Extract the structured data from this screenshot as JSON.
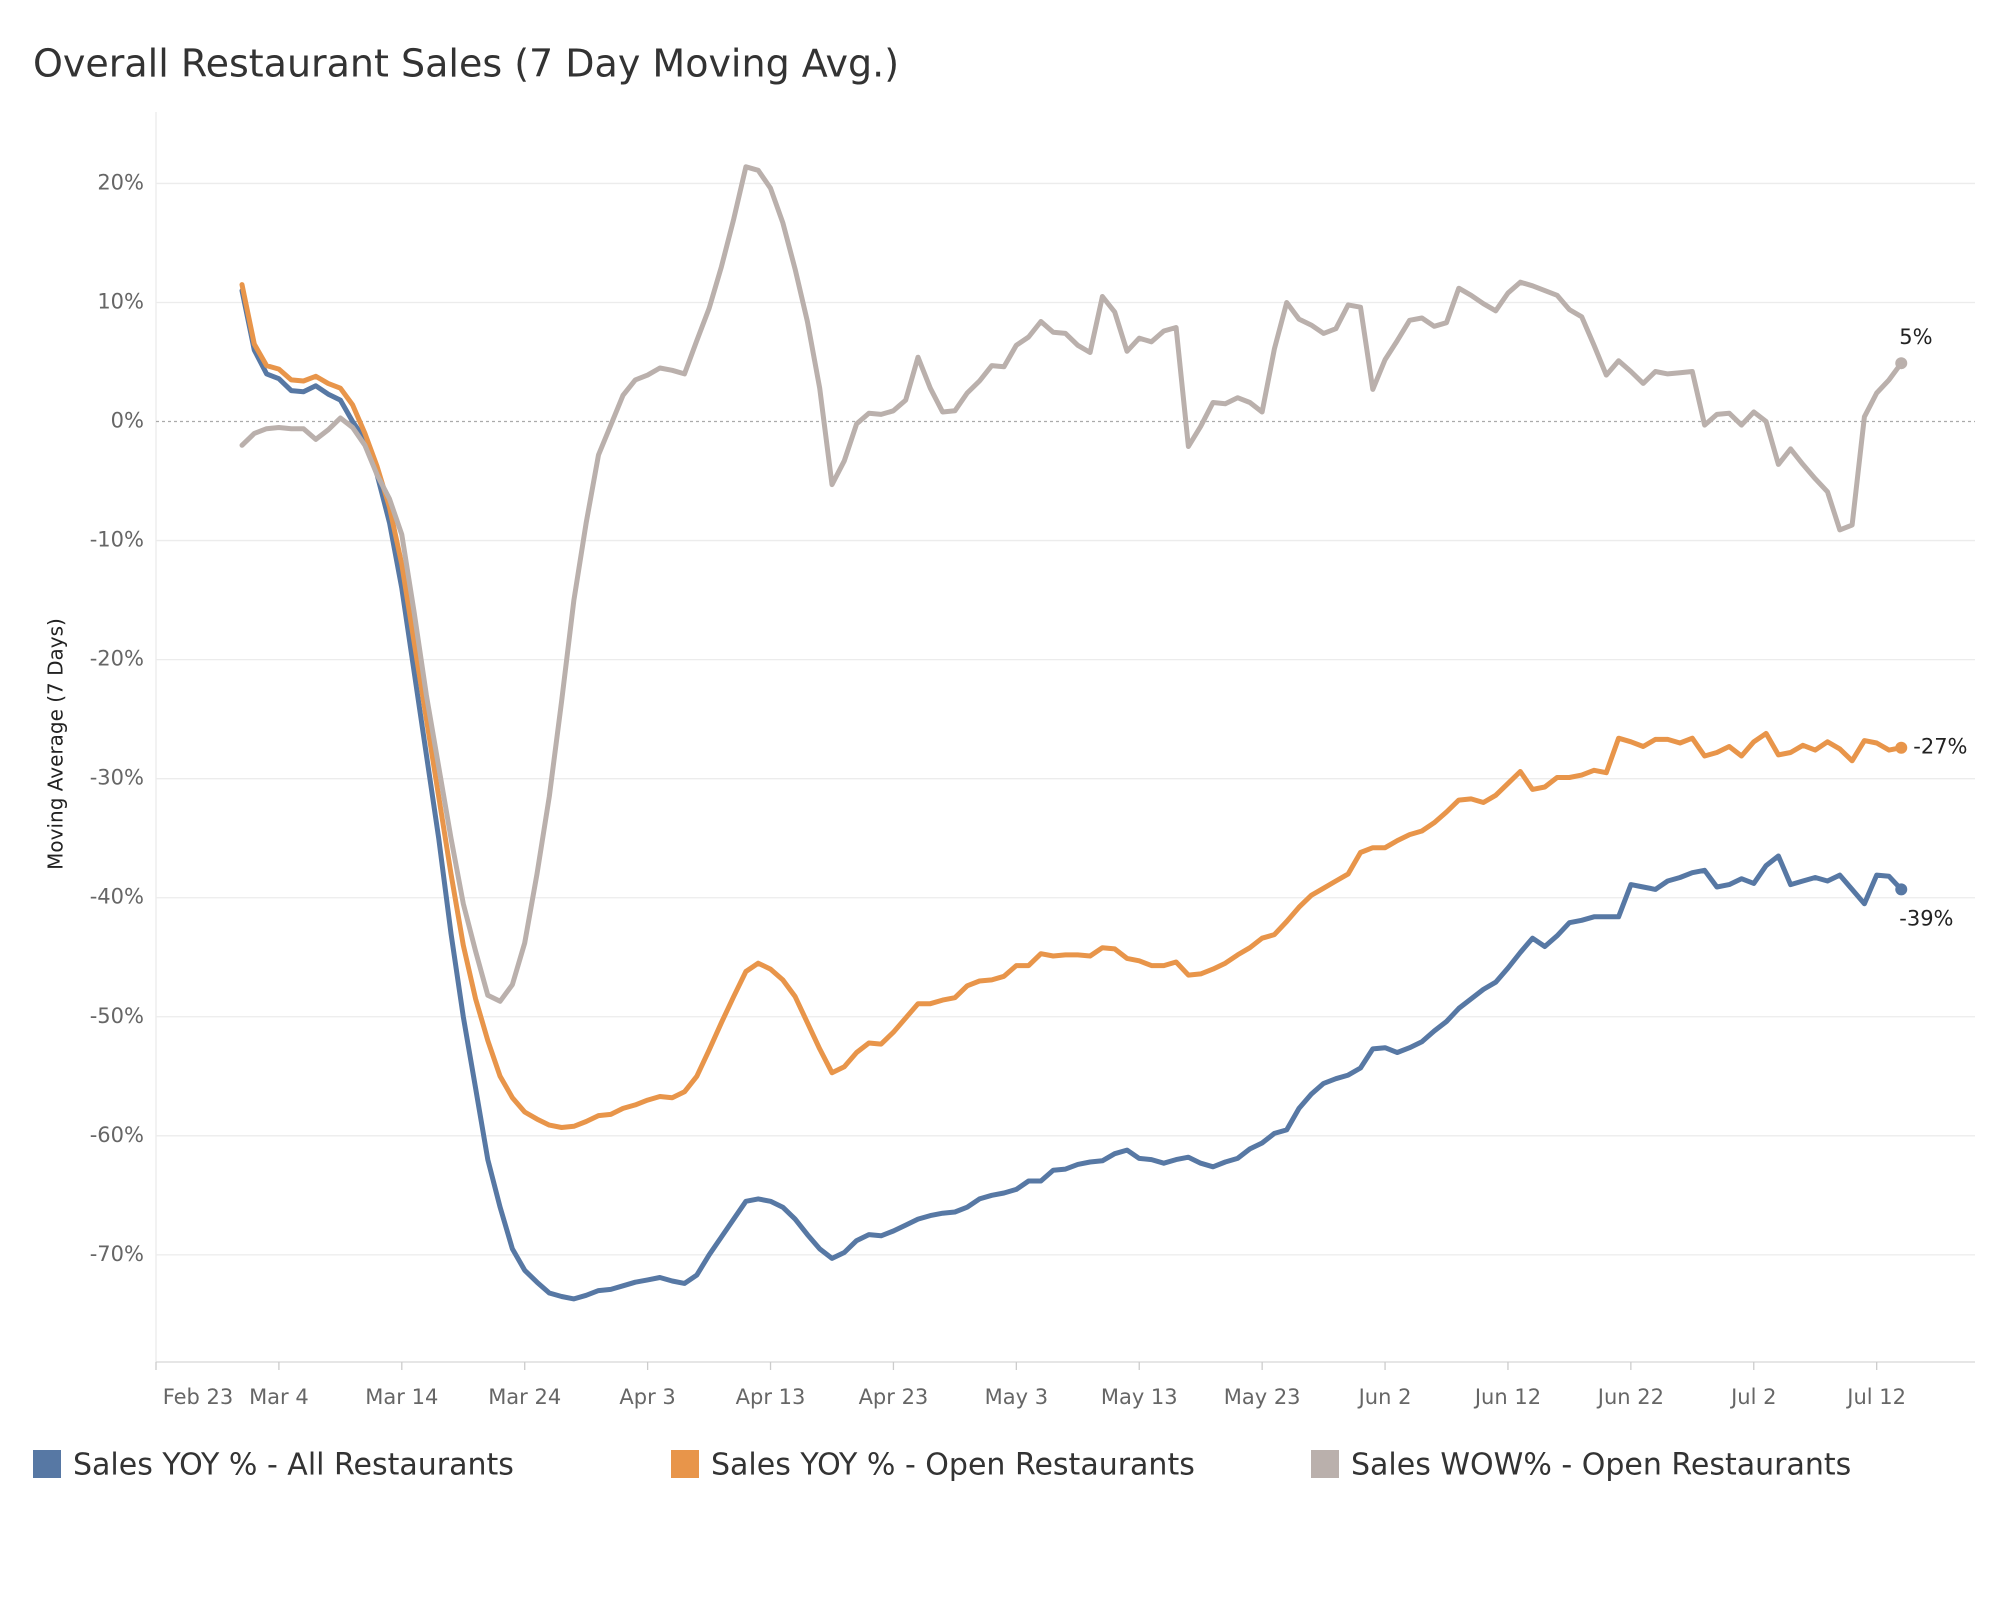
{
  "chart_data": {
    "type": "line",
    "title": "Overall Restaurant Sales (7 Day Moving Avg.)",
    "y_label": "Moving Average (7 Days)",
    "x": [
      "Mar 1",
      "Mar 2",
      "Mar 3",
      "Mar 4",
      "Mar 5",
      "Mar 6",
      "Mar 7",
      "Mar 8",
      "Mar 9",
      "Mar 10",
      "Mar 11",
      "Mar 12",
      "Mar 13",
      "Mar 14",
      "Mar 15",
      "Mar 16",
      "Mar 17",
      "Mar 18",
      "Mar 19",
      "Mar 20",
      "Mar 21",
      "Mar 22",
      "Mar 23",
      "Mar 24",
      "Mar 25",
      "Mar 26",
      "Mar 27",
      "Mar 28",
      "Mar 29",
      "Mar 30",
      "Mar 31",
      "Apr 1",
      "Apr 2",
      "Apr 3",
      "Apr 4",
      "Apr 5",
      "Apr 6",
      "Apr 7",
      "Apr 8",
      "Apr 9",
      "Apr 10",
      "Apr 11",
      "Apr 12",
      "Apr 13",
      "Apr 14",
      "Apr 15",
      "Apr 16",
      "Apr 17",
      "Apr 18",
      "Apr 19",
      "Apr 20",
      "Apr 21",
      "Apr 22",
      "Apr 23",
      "Apr 24",
      "Apr 25",
      "Apr 26",
      "Apr 27",
      "Apr 28",
      "Apr 29",
      "Apr 30",
      "May 1",
      "May 2",
      "May 3",
      "May 4",
      "May 5",
      "May 6",
      "May 7",
      "May 8",
      "May 9",
      "May 10",
      "May 11",
      "May 12",
      "May 13",
      "May 14",
      "May 15",
      "May 16",
      "May 17",
      "May 18",
      "May 19",
      "May 20",
      "May 21",
      "May 22",
      "May 23",
      "May 24",
      "May 25",
      "May 26",
      "May 27",
      "May 28",
      "May 29",
      "May 30",
      "May 31",
      "Jun 1",
      "Jun 2",
      "Jun 3",
      "Jun 4",
      "Jun 5",
      "Jun 6",
      "Jun 7",
      "Jun 8",
      "Jun 9",
      "Jun 10",
      "Jun 11",
      "Jun 12",
      "Jun 13",
      "Jun 14",
      "Jun 15",
      "Jun 16",
      "Jun 17",
      "Jun 18",
      "Jun 19",
      "Jun 20",
      "Jun 21",
      "Jun 22",
      "Jun 23",
      "Jun 24",
      "Jun 25",
      "Jun 26",
      "Jun 27",
      "Jun 28",
      "Jun 29",
      "Jun 30",
      "Jul 1",
      "Jul 2",
      "Jul 3",
      "Jul 4",
      "Jul 5",
      "Jul 6",
      "Jul 7",
      "Jul 8",
      "Jul 9",
      "Jul 10",
      "Jul 11",
      "Jul 12",
      "Jul 13",
      "Jul 14"
    ],
    "xlim": [
      "Feb 23",
      "Jul 20"
    ],
    "xticks": [
      "Feb 23",
      "Mar 4",
      "Mar 14",
      "Mar 24",
      "Apr 3",
      "Apr 13",
      "Apr 23",
      "May 3",
      "May 13",
      "May 23",
      "Jun 2",
      "Jun 12",
      "Jun 22",
      "Jul 2",
      "Jul 12"
    ],
    "ylim": [
      -79,
      26
    ],
    "yticks": [
      {
        "value": -70,
        "label": "-70%"
      },
      {
        "value": -60,
        "label": "-60%"
      },
      {
        "value": -50,
        "label": "-50%"
      },
      {
        "value": -40,
        "label": "-40%"
      },
      {
        "value": -30,
        "label": "-30%"
      },
      {
        "value": -20,
        "label": "-20%"
      },
      {
        "value": -10,
        "label": "-10%"
      },
      {
        "value": 0,
        "label": "0%"
      },
      {
        "value": 10,
        "label": "10%"
      },
      {
        "value": 20,
        "label": "20%"
      }
    ],
    "grid": true,
    "zero_line": true,
    "series": [
      {
        "name": "Sales YOY % - All Restaurants",
        "color": "#5778a4",
        "end_label": "-39%",
        "values": [
          11,
          6,
          4,
          3.6,
          2.6,
          2.5,
          3,
          2.3,
          1.8,
          0,
          -1.5,
          -4.5,
          -8.5,
          -14,
          -21,
          -28,
          -35,
          -43,
          -50,
          -56,
          -62,
          -66,
          -69.5,
          -71.3,
          -72.3,
          -73.2,
          -73.5,
          -73.7,
          -73.4,
          -73,
          -72.9,
          -72.6,
          -72.3,
          -72.1,
          -71.9,
          -72.2,
          -72.4,
          -71.7,
          -70,
          -68.5,
          -67,
          -65.5,
          -65.3,
          -65.5,
          -66,
          -67,
          -68.3,
          -69.5,
          -70.3,
          -69.8,
          -68.8,
          -68.3,
          -68.4,
          -68,
          -67.5,
          -67,
          -66.7,
          -66.5,
          -66.4,
          -66,
          -65.3,
          -65,
          -64.8,
          -64.5,
          -63.8,
          -63.8,
          -62.9,
          -62.8,
          -62.4,
          -62.2,
          -62.1,
          -61.5,
          -61.2,
          -61.9,
          -62,
          -62.3,
          -62,
          -61.8,
          -62.3,
          -62.6,
          -62.2,
          -61.9,
          -61.1,
          -60.6,
          -59.8,
          -59.5,
          -57.7,
          -56.5,
          -55.6,
          -55.2,
          -54.9,
          -54.3,
          -52.7,
          -52.6,
          -53,
          -52.6,
          -52.1,
          -51.2,
          -50.4,
          -49.3,
          -48.5,
          -47.7,
          -47.1,
          -45.9,
          -44.6,
          -43.4,
          -44.1,
          -43.2,
          -42.1,
          -41.9,
          -41.6,
          -41.6,
          -41.6,
          -38.9,
          -39.1,
          -39.3,
          -38.6,
          -38.3,
          -37.9,
          -37.7,
          -39.1,
          -38.9,
          -38.4,
          -38.8,
          -37.3,
          -36.5,
          -38.9,
          -38.6,
          -38.3,
          -38.6,
          -38.1,
          -39.3,
          -40.5,
          -38.1,
          -38.2,
          -39.3
        ]
      },
      {
        "name": "Sales YOY % - Open Restaurants",
        "color": "#e8954a",
        "end_label": "-27%",
        "values": [
          11.5,
          6.5,
          4.7,
          4.4,
          3.5,
          3.4,
          3.8,
          3.2,
          2.8,
          1.4,
          -1,
          -3.8,
          -7.2,
          -12,
          -18.5,
          -25,
          -31.5,
          -38,
          -44,
          -48.5,
          -52,
          -55,
          -56.8,
          -58,
          -58.6,
          -59.1,
          -59.3,
          -59.2,
          -58.8,
          -58.3,
          -58.2,
          -57.7,
          -57.4,
          -57,
          -56.7,
          -56.8,
          -56.3,
          -55,
          -52.8,
          -50.5,
          -48.3,
          -46.2,
          -45.5,
          -46,
          -46.9,
          -48.3,
          -50.5,
          -52.7,
          -54.7,
          -54.2,
          -53,
          -52.2,
          -52.3,
          -51.3,
          -50.1,
          -48.9,
          -48.9,
          -48.6,
          -48.4,
          -47.4,
          -47,
          -46.9,
          -46.6,
          -45.7,
          -45.7,
          -44.7,
          -44.9,
          -44.8,
          -44.8,
          -44.9,
          -44.2,
          -44.3,
          -45.1,
          -45.3,
          -45.7,
          -45.7,
          -45.4,
          -46.5,
          -46.4,
          -46,
          -45.5,
          -44.8,
          -44.2,
          -43.4,
          -43.1,
          -42,
          -40.8,
          -39.8,
          -39.2,
          -38.6,
          -38,
          -36.2,
          -35.8,
          -35.8,
          -35.2,
          -34.7,
          -34.4,
          -33.7,
          -32.8,
          -31.8,
          -31.7,
          -32,
          -31.4,
          -30.4,
          -29.4,
          -30.9,
          -30.7,
          -29.9,
          -29.9,
          -29.7,
          -29.3,
          -29.5,
          -26.6,
          -26.9,
          -27.3,
          -26.7,
          -26.7,
          -27,
          -26.6,
          -28.1,
          -27.8,
          -27.3,
          -28.1,
          -26.9,
          -26.2,
          -28,
          -27.8,
          -27.2,
          -27.6,
          -26.9,
          -27.5,
          -28.5,
          -26.8,
          -27,
          -27.6,
          -27.4
        ]
      },
      {
        "name": "Sales WOW% - Open Restaurants",
        "color": "#bab0ac",
        "end_label": "5%",
        "values": [
          -2,
          -1,
          -0.6,
          -0.5,
          -0.6,
          -0.6,
          -1.5,
          -0.7,
          0.3,
          -0.5,
          -2,
          -4.5,
          -6.5,
          -9.5,
          -16,
          -23,
          -29,
          -35,
          -40.5,
          -44.5,
          -48.2,
          -48.7,
          -47.3,
          -43.8,
          -38,
          -31.5,
          -23.5,
          -15,
          -8.5,
          -2.8,
          -0.3,
          2.2,
          3.5,
          3.9,
          4.5,
          4.3,
          4,
          6.8,
          9.5,
          13,
          17,
          21.4,
          21.1,
          19.6,
          16.7,
          12.8,
          8.4,
          2.8,
          -5.3,
          -3.3,
          -0.2,
          0.7,
          0.6,
          0.9,
          1.8,
          5.4,
          2.8,
          0.8,
          0.9,
          2.4,
          3.4,
          4.7,
          4.6,
          6.4,
          7.1,
          8.4,
          7.5,
          7.4,
          6.4,
          5.8,
          10.5,
          9.2,
          5.9,
          7,
          6.7,
          7.6,
          7.9,
          -2.1,
          -0.4,
          1.6,
          1.5,
          2,
          1.6,
          0.8,
          6.1,
          10,
          8.6,
          8.1,
          7.4,
          7.8,
          9.8,
          9.6,
          2.7,
          5.2,
          6.8,
          8.5,
          8.7,
          8,
          8.3,
          11.2,
          10.6,
          9.9,
          9.3,
          10.8,
          11.7,
          11.4,
          11,
          10.6,
          9.4,
          8.8,
          6.4,
          3.9,
          5.1,
          4.2,
          3.2,
          4.2,
          4,
          4.1,
          4.2,
          -0.3,
          0.6,
          0.7,
          -0.3,
          0.8,
          0,
          -3.6,
          -2.3,
          -3.6,
          -4.8,
          -5.9,
          -9.1,
          -8.7,
          0.4,
          2.4,
          3.5,
          4.9
        ]
      }
    ]
  }
}
